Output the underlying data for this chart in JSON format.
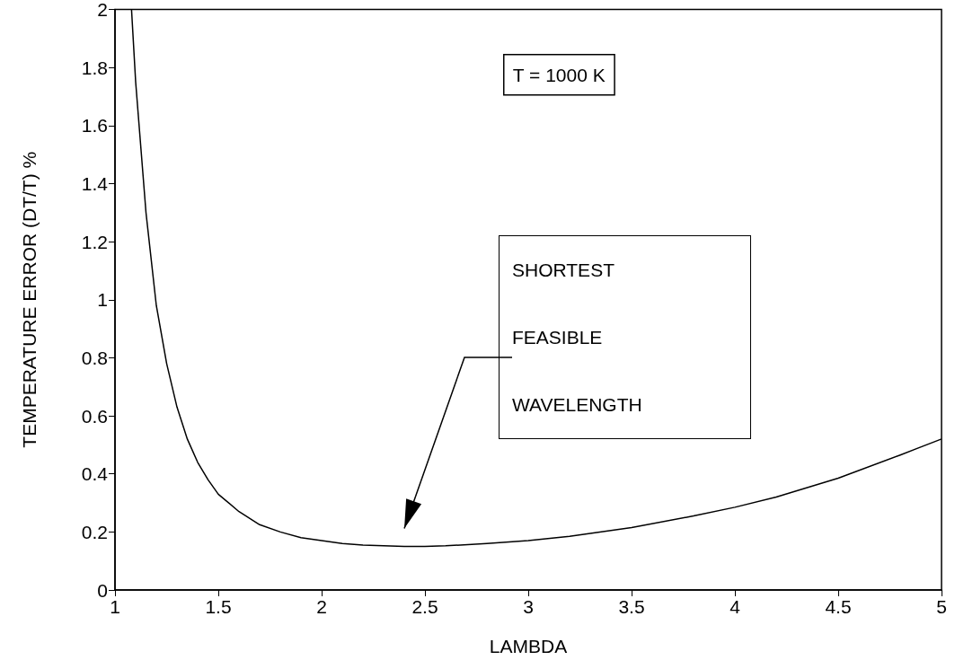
{
  "chart_data": {
    "type": "line",
    "xlabel": "LAMBDA",
    "ylabel": "TEMPERATURE ERROR (DT/T) %",
    "x": [
      1.08,
      1.1,
      1.15,
      1.2,
      1.25,
      1.3,
      1.35,
      1.4,
      1.45,
      1.5,
      1.6,
      1.7,
      1.8,
      1.9,
      2.0,
      2.1,
      2.2,
      2.3,
      2.4,
      2.5,
      2.6,
      2.8,
      3.0,
      3.2,
      3.5,
      3.8,
      4.0,
      4.2,
      4.5,
      4.8,
      5.0
    ],
    "series": [
      {
        "color": "#000000",
        "values": [
          2.0,
          1.75,
          1.3,
          0.98,
          0.78,
          0.63,
          0.52,
          0.44,
          0.38,
          0.33,
          0.27,
          0.225,
          0.2,
          0.18,
          0.17,
          0.16,
          0.155,
          0.152,
          0.15,
          0.15,
          0.152,
          0.16,
          0.17,
          0.185,
          0.215,
          0.255,
          0.285,
          0.32,
          0.385,
          0.465,
          0.52
        ]
      }
    ],
    "xlim": [
      1,
      5
    ],
    "xticks": [
      1,
      1.5,
      2,
      2.5,
      3,
      3.5,
      4,
      4.5,
      5
    ],
    "ylim": [
      0,
      2
    ],
    "yticks": [
      0,
      0.2,
      0.4,
      0.6,
      0.8,
      1,
      1.2,
      1.4,
      1.6,
      1.8,
      2
    ],
    "grid": false,
    "marker": "none",
    "line_style": "solid",
    "annotations": [
      "T = 1000 K",
      "SHORTEST FEASIBLE WAVELENGTH"
    ]
  }
}
